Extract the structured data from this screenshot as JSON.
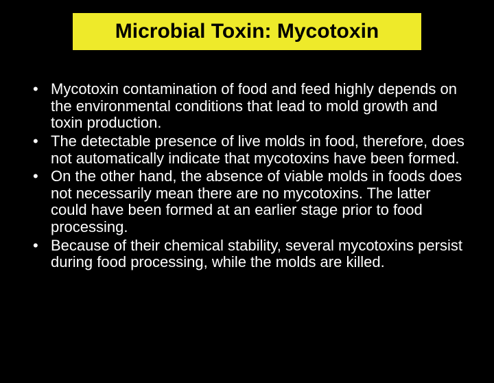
{
  "slide": {
    "title": "Microbial Toxin: Mycotoxin",
    "title_bg": "#eeea2a",
    "title_color": "#000000",
    "background": "#000000",
    "text_color": "#ffffff",
    "bullets": [
      "Mycotoxin contamination of food and feed highly depends on the environmental conditions that lead to mold growth and toxin production.",
      "The detectable presence of live molds in food, therefore, does not automatically indicate that mycotoxins have been formed.",
      "On the other hand, the absence of viable molds in foods does not necessarily mean there are no mycotoxins. The latter could have been formed at an earlier stage prior to food processing.",
      "Because of their chemical stability, several mycotoxins persist during food processing, while the molds are killed."
    ]
  }
}
